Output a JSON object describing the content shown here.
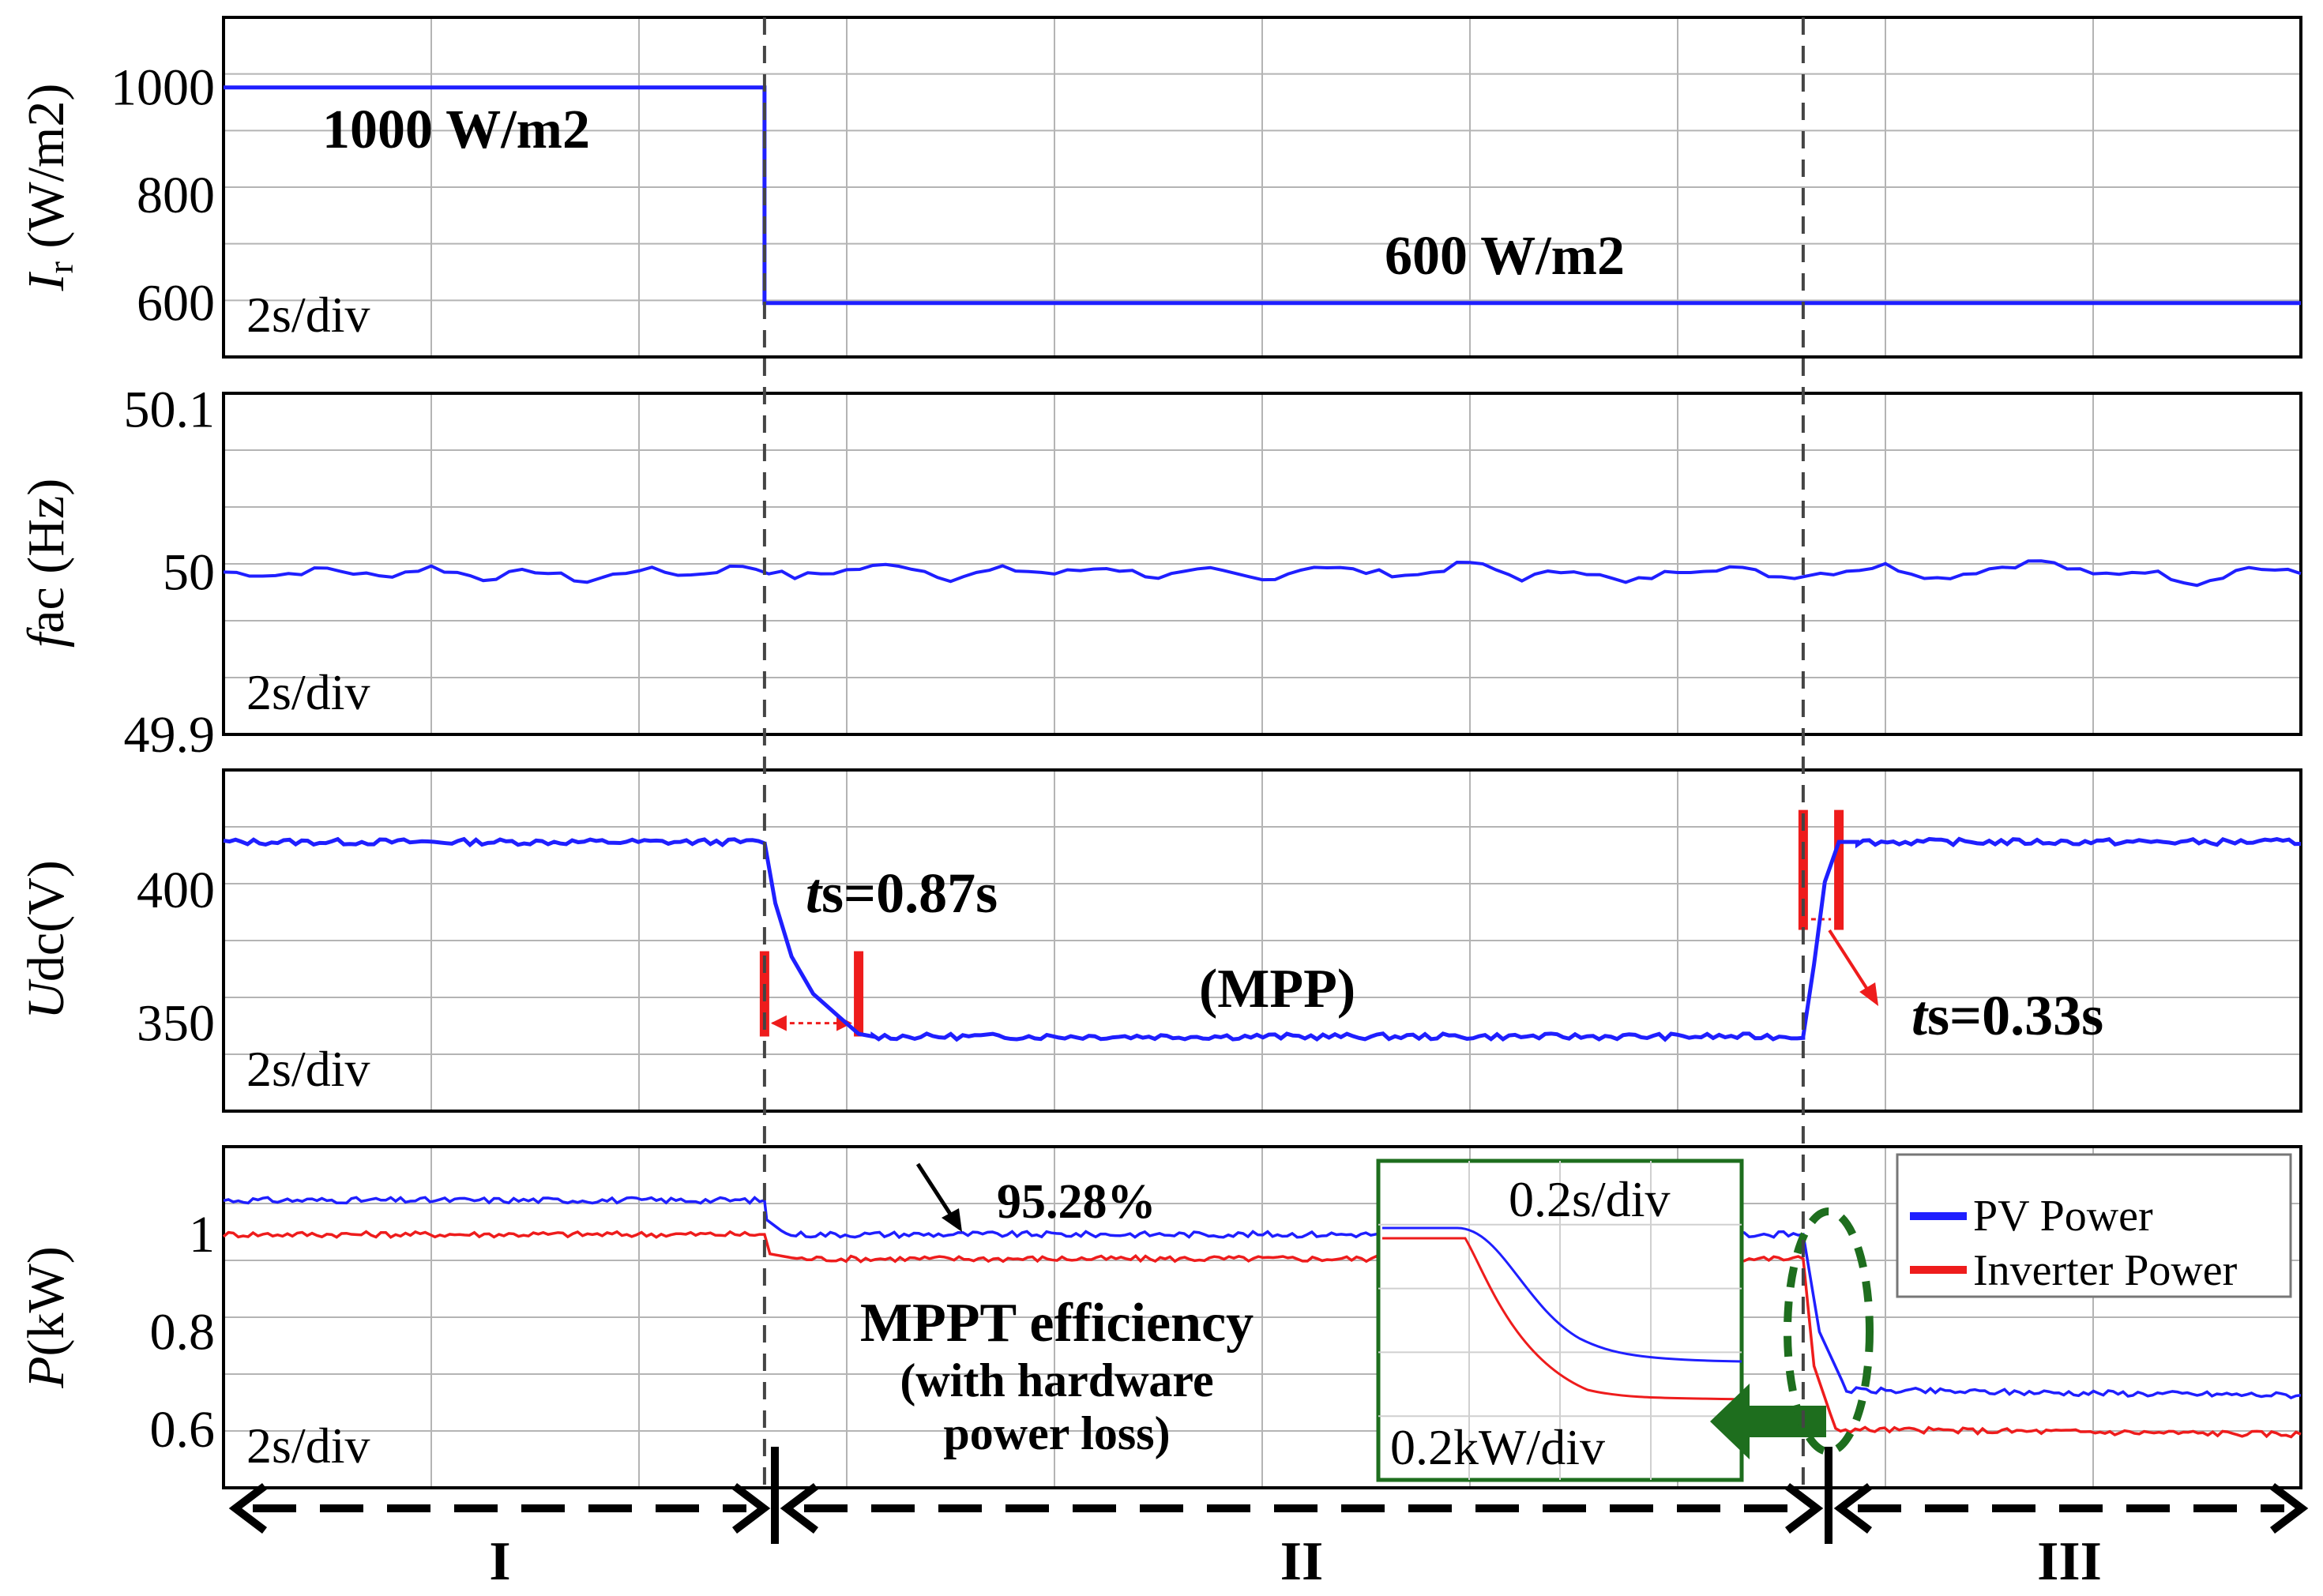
{
  "colors": {
    "blue": "#1f1fff",
    "red": "#ee1c1c",
    "grid": "#b4b4b4",
    "green": "#1e6e1e",
    "dashed_divider": "#444444"
  },
  "chart_data": [
    {
      "type": "line",
      "panel": "irradiance",
      "ylabel_italic": "I",
      "ylabel_sub": "r",
      "ylabel_rest": " (W/m2)",
      "yticks": [
        1000,
        800,
        600
      ],
      "ylim": [
        500,
        1130
      ],
      "time_div": "2s/div",
      "x": [
        0,
        5,
        5,
        19.2
      ],
      "series": [
        {
          "color": "#1f1fff",
          "values": [
            1000,
            1000,
            600,
            600
          ]
        }
      ],
      "annotations": [
        "1000 W/m2",
        "600 W/m2"
      ]
    },
    {
      "type": "line",
      "panel": "frequency",
      "ylabel_italic": "f",
      "ylabel_rest": "ac (Hz)",
      "yticks": [
        50.1,
        50,
        49.9
      ],
      "ylim": [
        49.9,
        50.11
      ],
      "time_div": "2s/div",
      "series": [
        {
          "color": "#1f1fff",
          "values": [
            50.0,
            49.998,
            50.002,
            49.997,
            50.003,
            49.996,
            50.001,
            49.994,
            50.002,
            49.998,
            50.004,
            49.997,
            50.001,
            50.005,
            49.996,
            50.002,
            49.999,
            50.003,
            49.997,
            50.001,
            49.995,
            50.004,
            50.0,
            49.998,
            50.006,
            49.996,
            50.002,
            49.993,
            50.001,
            50.003,
            49.997,
            50.0,
            50.004,
            49.996,
            50.002,
            50.007,
            49.998,
            50.001,
            49.993,
            50.003,
            49.999
          ]
        }
      ]
    },
    {
      "type": "line",
      "panel": "dc-voltage",
      "ylabel_italic": "U",
      "ylabel_rest": "dc(V)",
      "yticks": [
        400,
        350
      ],
      "ylim": [
        317,
        445
      ],
      "time_div": "2s/div",
      "series": [
        {
          "color": "#1f1fff",
          "segments": [
            {
              "x": [
                0,
                5.0
              ],
              "y": [
                418,
                418
              ]
            },
            {
              "x": [
                5.0,
                5.1,
                5.25,
                5.45,
                5.7,
                5.87,
                6.0
              ],
              "y": [
                418,
                395,
                375,
                361,
                352,
                346,
                345
              ]
            },
            {
              "x": [
                6.0,
                14.6
              ],
              "y": [
                345,
                345
              ]
            },
            {
              "x": [
                14.6,
                14.7,
                14.8,
                14.93,
                15.1
              ],
              "y": [
                345,
                372,
                403,
                418,
                418
              ]
            },
            {
              "x": [
                15.1,
                19.2
              ],
              "y": [
                418,
                418
              ]
            }
          ]
        }
      ],
      "annotations": [
        "ts=0.87s",
        "(MPP)",
        "ts=0.33s"
      ],
      "settling": [
        {
          "t_start": 5.0,
          "t_end": 5.87,
          "label_italic": "t",
          "label_rest": "s=0.87s"
        },
        {
          "t_start": 14.6,
          "t_end": 14.93,
          "label_italic": "t",
          "label_rest": "s=0.33s"
        }
      ]
    },
    {
      "type": "line",
      "panel": "power",
      "ylabel_italic": "P",
      "ylabel_rest": "(kW)",
      "yticks": [
        1,
        0.8,
        0.6
      ],
      "ylim": [
        0.48,
        1.18
      ],
      "time_div": "2s/div",
      "series": [
        {
          "name": "PV Power",
          "color": "#1f1fff",
          "x": [
            0,
            5.0,
            5.02,
            5.2,
            14.6,
            14.75,
            15.0,
            19.2
          ],
          "values": [
            1.07,
            1.07,
            1.03,
            1.0,
            1.0,
            0.8,
            0.68,
            0.67
          ]
        },
        {
          "name": "Inverter Power",
          "color": "#ee1c1c",
          "x": [
            0,
            5.0,
            5.05,
            5.3,
            14.6,
            14.7,
            14.9,
            19.2
          ],
          "values": [
            1.0,
            1.0,
            0.96,
            0.95,
            0.95,
            0.73,
            0.6,
            0.59
          ]
        }
      ],
      "legend": [
        "PV Power",
        "Inverter Power"
      ],
      "legend_position": "top-right",
      "annotations": {
        "efficiency": "95.28%",
        "title1": "MPPT efficiency",
        "title2": "(with hardware",
        "title3": "power loss)"
      },
      "inset": {
        "time_div": "0.2s/div",
        "amp_div": "0.2kW/div"
      }
    }
  ],
  "phases": [
    "I",
    "II",
    "III"
  ]
}
